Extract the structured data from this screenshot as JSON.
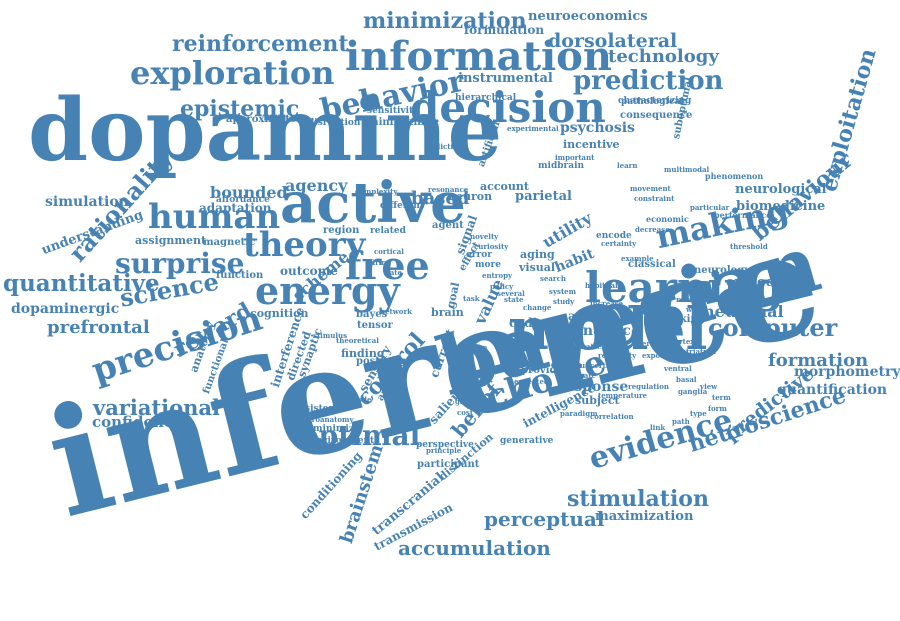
{
  "cloud": {
    "color": "#4682b4",
    "words": [
      "inference",
      "dopamine",
      "bayesian",
      "model",
      "active",
      "information",
      "decision",
      "learning",
      "energy",
      "exploration",
      "behavior",
      "free",
      "theory",
      "human",
      "making",
      "surprise",
      "reinforcement",
      "minimization",
      "precision",
      "choice",
      "evidence",
      "prediction",
      "optimal",
      "epistemic",
      "science",
      "exploitation",
      "behaviour",
      "computer",
      "rationality",
      "quantitative",
      "neuroscience",
      "variational",
      "stimulation",
      "accumulation",
      "perceptual",
      "reward",
      "dorsolateral",
      "technology",
      "neuroeconomics",
      "formation",
      "control",
      "predictive",
      "dopaminergic",
      "prefrontal",
      "bounded",
      "agency",
      "based",
      "belief",
      "confidence",
      "morphometry",
      "quantification",
      "neuronal",
      "simulation",
      "utility",
      "dynamic",
      "brainstem",
      "scheme",
      "instrumental",
      "psychosis",
      "biomedicine",
      "neurological",
      "response",
      "maximization",
      "understanding",
      "adaptation",
      "habit",
      "formulation",
      "parietal",
      "value",
      "transcranial",
      "transmission",
      "embodied",
      "assignment",
      "outcome",
      "cognition",
      "neurology",
      "incentive",
      "coding",
      "visual",
      "neuron",
      "account",
      "activity",
      "aging",
      "signal",
      "subject",
      "interference",
      "directed",
      "synaptic",
      "finding",
      "sensory",
      "current",
      "analysis",
      "salience",
      "intelligence",
      "provide",
      "conditioning",
      "participant",
      "distinction",
      "generative",
      "magnetic",
      "function",
      "region",
      "agent",
      "brain",
      "goal",
      "bayes",
      "tensor",
      "posterior",
      "anatomy",
      "functional",
      "affordance",
      "different",
      "related",
      "approximate",
      "sensitivity",
      "hierarchical",
      "disruption",
      "minimizing",
      "characterizing",
      "consequence",
      "pathological",
      "suboptimal",
      "artificial",
      "midbrain",
      "phenomenon",
      "economic",
      "performance",
      "masking",
      "classical",
      "error",
      "encode",
      "perspective",
      "consistent",
      "minimize",
      "environment",
      "neuroanatomy",
      "certainty",
      "example",
      "increase",
      "uncertainty",
      "estimate",
      "paradigm",
      "temperature",
      "expected",
      "multimodal",
      "movement",
      "constraint",
      "particular",
      "decrease",
      "habitual",
      "change",
      "several",
      "principle",
      "complexity",
      "resonance",
      "important",
      "experimental",
      "addiction",
      "learn",
      "threshold",
      "stimulus",
      "network",
      "theoretical",
      "attention",
      "reliability",
      "correlation",
      "perception",
      "exponential",
      "regulation",
      "cortex",
      "striatum",
      "ventral",
      "basal",
      "ganglia",
      "cortical",
      "firing",
      "rate",
      "novelty",
      "curiosity",
      "entropy",
      "policy",
      "state",
      "action",
      "effect",
      "more",
      "task",
      "gain",
      "cost",
      "search",
      "system",
      "study",
      "data",
      "test",
      "level",
      "time",
      "role",
      "work",
      "view",
      "term",
      "form",
      "type",
      "path",
      "link",
      "mode"
    ]
  }
}
